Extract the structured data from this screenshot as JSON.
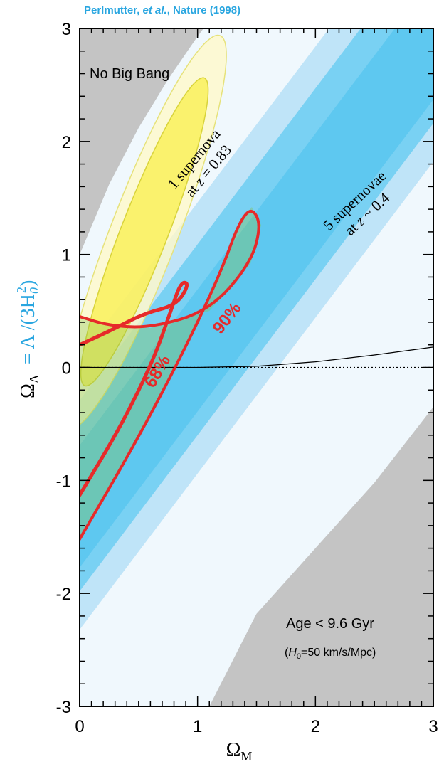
{
  "citation": {
    "authors": "Perlmutter, ",
    "etal": "et al.",
    "journal": ", Nature (1998)"
  },
  "chart_data": {
    "type": "area",
    "title": "",
    "xlabel": "Ω_M",
    "ylabel": "Ω_Λ = Λ/(3H_0^2)",
    "ylabel_parts": {
      "omega": "Ω",
      "lambda_sub": "Λ",
      "rhs": "= Λ /(3H",
      "h_sub": "0",
      "h_sup": "2",
      "close": ")"
    },
    "xlabel_parts": {
      "omega": "Ω",
      "sub": "M"
    },
    "xlim": [
      0,
      3
    ],
    "ylim": [
      -3,
      3
    ],
    "x_ticks": [
      0,
      1,
      2,
      3
    ],
    "y_ticks": [
      -3,
      -2,
      -1,
      0,
      1,
      2,
      3
    ],
    "tick_labels_x": [
      "0",
      "1",
      "2",
      "3"
    ],
    "tick_labels_y": [
      "-3",
      "-2",
      "-1",
      "0",
      "1",
      "2",
      "3"
    ],
    "grid": false,
    "region_labels": {
      "no_big_bang": "No Big Bang",
      "age": "Age < 9.6 Gyr",
      "age_note_open": "(",
      "age_note_h": "H",
      "age_note_sub": "0",
      "age_note_rest": "=50 km/s/Mpc)"
    },
    "band_labels": {
      "one_sn_line1": "1 supernova",
      "one_sn_line2_pre": "at ",
      "one_sn_line2_z": "z",
      "one_sn_line2_post": " = 0.83",
      "five_sn_line1": "5 supernovae",
      "five_sn_line2_pre": "at ",
      "five_sn_line2_z": "z",
      "five_sn_line2_post": " ~ 0.4"
    },
    "contour_labels": {
      "c68": "68%",
      "c90": "90%"
    },
    "no_big_bang_boundary": [
      [
        0,
        1.0
      ],
      [
        0.25,
        1.62
      ],
      [
        0.5,
        2.12
      ],
      [
        0.75,
        2.55
      ],
      [
        1.0,
        2.93
      ],
      [
        1.05,
        3.0
      ]
    ],
    "age_boundary": [
      [
        1.1,
        -3.0
      ],
      [
        1.5,
        -2.18
      ],
      [
        2.0,
        -1.6
      ],
      [
        2.5,
        -1.02
      ],
      [
        3.0,
        -0.35
      ]
    ],
    "five_sn_bands": {
      "axis_point": [
        0.92,
        0
      ],
      "slope": 1.38,
      "outer_offsets": [
        -1.05,
        1.35
      ],
      "mid_offsets": [
        -0.71,
        0.98
      ],
      "inner_offsets": [
        -0.5,
        0.58
      ]
    },
    "one_sn_ellipses": {
      "center": [
        0.55,
        1.2
      ],
      "angle_deg": 55,
      "outer_semi_axes": [
        2.1,
        0.46
      ],
      "inner_semi_axes": [
        1.65,
        0.32
      ],
      "colors": {
        "outer": "#fff9c8",
        "inner": "#f9ef45"
      }
    },
    "confidence_contours": [
      {
        "level": "90%",
        "points": [
          [
            0,
            -1.52
          ],
          [
            0.5,
            -0.62
          ],
          [
            0.92,
            0.22
          ],
          [
            1.2,
            0.85
          ],
          [
            1.35,
            1.28
          ],
          [
            1.46,
            1.42
          ],
          [
            1.54,
            1.26
          ],
          [
            1.45,
            0.92
          ],
          [
            1.1,
            0.5
          ],
          [
            0.6,
            0.35
          ],
          [
            0.25,
            0.37
          ],
          [
            0,
            0.45
          ]
        ]
      },
      {
        "level": "68%",
        "points": [
          [
            0,
            -1.13
          ],
          [
            0.35,
            -0.52
          ],
          [
            0.62,
            0.05
          ],
          [
            0.78,
            0.52
          ],
          [
            0.86,
            0.76
          ],
          [
            0.93,
            0.74
          ],
          [
            0.82,
            0.55
          ],
          [
            0.55,
            0.48
          ],
          [
            0.25,
            0.32
          ],
          [
            0,
            0.2
          ]
        ]
      }
    ],
    "expansion_boundary": [
      [
        0,
        0
      ],
      [
        1.0,
        0.0
      ],
      [
        1.5,
        0.01
      ],
      [
        2.0,
        0.05
      ],
      [
        2.5,
        0.11
      ],
      [
        3.0,
        0.18
      ]
    ],
    "flat_reference": [
      [
        0,
        0
      ],
      [
        3,
        0
      ]
    ],
    "colors": {
      "forbidden": "#c4c4c4",
      "background": "#f0f8fd",
      "band_outer": "#bfe4f8",
      "band_mid": "#79d1f3",
      "band_inner": "#5ec8f0",
      "one_sn_outer": "#fff9c8",
      "one_sn_inner": "#f9ef45",
      "overlap": "#86c24b",
      "contour": "#e62a2a",
      "accent": "#29a6e0"
    }
  }
}
